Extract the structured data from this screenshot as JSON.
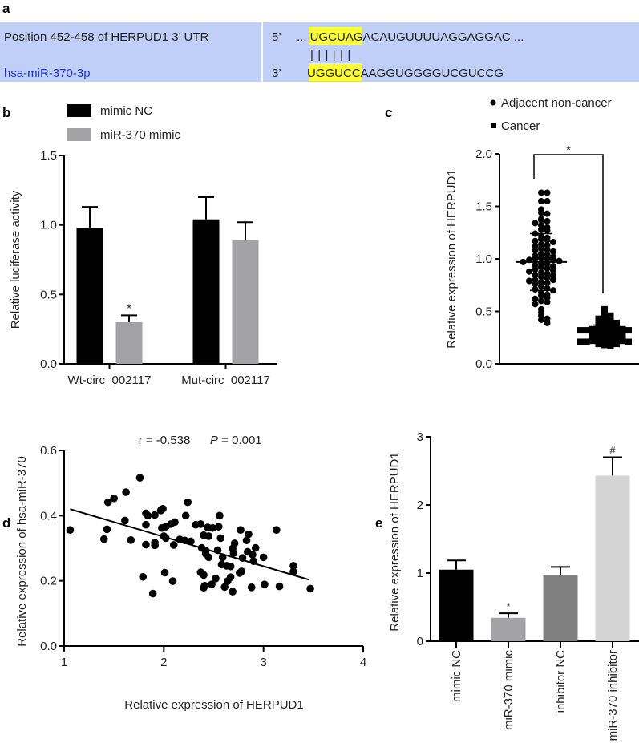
{
  "panel_labels": {
    "a": "a",
    "b": "b",
    "c": "c",
    "d": "d",
    "e": "e"
  },
  "panel_a": {
    "row1_label": "Position 452-458 of HERPUD1 3’ UTR",
    "row2_label": "hsa-miR-370-3p",
    "row1_end": "5’",
    "row2_end": "3’",
    "row1_seq_pre": "... UGCUAGACAUGUUUU",
    "row1_seq_match": "AGGAGG",
    "row1_seq_post": "AC ...",
    "row2_seq_pre": "UGGUCCAAGGUGGGG",
    "row2_seq_match": "UCGUCC",
    "row2_seq_post": "G",
    "pairing": "| | | | | |",
    "colors": {
      "band": "#c0cff7",
      "highlight": "#ffff33",
      "mirna_text": "#2233cc"
    }
  },
  "chart_data": [
    {
      "id": "b",
      "type": "bar",
      "ylabel": "Relative luciferase activity",
      "xlabel": "",
      "ylim": [
        0,
        1.5
      ],
      "yticks": [
        "0.0",
        "0.5",
        "1.0",
        "1.5"
      ],
      "categories": [
        "Wt-circ_002117",
        "Mut-circ_002117"
      ],
      "legend": "top-left",
      "series": [
        {
          "name": "mimic NC",
          "color": "#000000",
          "values": [
            0.98,
            1.04
          ],
          "errors": [
            0.15,
            0.16
          ],
          "annotations": [
            "",
            ""
          ]
        },
        {
          "name": "miR-370 mimic",
          "color": "#a3a3a6",
          "values": [
            0.3,
            0.89
          ],
          "errors": [
            0.05,
            0.13
          ],
          "annotations": [
            "*",
            ""
          ]
        }
      ]
    },
    {
      "id": "c",
      "type": "scatter",
      "subtype": "dot-plot",
      "ylabel": "Relative expression of HERPUD1",
      "ylim": [
        0,
        2.0
      ],
      "yticks": [
        "0.0",
        "0.5",
        "1.0",
        "1.5",
        "2.0"
      ],
      "legend": "top-right",
      "significance": "*",
      "groups": [
        {
          "name": "Adjacent non-cancer",
          "marker": "circle",
          "mean": 0.97,
          "sd": 0.27,
          "values": [
            1.63,
            1.63,
            1.55,
            1.55,
            1.47,
            1.44,
            1.43,
            1.38,
            1.37,
            1.36,
            1.34,
            1.32,
            1.3,
            1.28,
            1.27,
            1.24,
            1.22,
            1.2,
            1.19,
            1.18,
            1.17,
            1.16,
            1.14,
            1.13,
            1.12,
            1.1,
            1.09,
            1.08,
            1.07,
            1.05,
            1.04,
            1.03,
            1.02,
            1.01,
            1.0,
            1.0,
            0.99,
            0.99,
            0.98,
            0.97,
            0.96,
            0.95,
            0.94,
            0.93,
            0.92,
            0.91,
            0.9,
            0.89,
            0.88,
            0.87,
            0.86,
            0.85,
            0.84,
            0.83,
            0.82,
            0.8,
            0.8,
            0.79,
            0.78,
            0.77,
            0.76,
            0.74,
            0.72,
            0.71,
            0.7,
            0.68,
            0.66,
            0.65,
            0.63,
            0.62,
            0.6,
            0.59,
            0.57,
            0.52,
            0.49,
            0.46,
            0.43,
            0.42,
            0.39
          ]
        },
        {
          "name": "Cancer",
          "marker": "square",
          "mean": 0.3,
          "sd": 0.07,
          "values": [
            0.52,
            0.47,
            0.46,
            0.45,
            0.44,
            0.43,
            0.42,
            0.41,
            0.4,
            0.4,
            0.39,
            0.39,
            0.38,
            0.38,
            0.37,
            0.37,
            0.36,
            0.36,
            0.35,
            0.35,
            0.34,
            0.34,
            0.34,
            0.33,
            0.33,
            0.33,
            0.32,
            0.32,
            0.32,
            0.31,
            0.31,
            0.31,
            0.3,
            0.3,
            0.3,
            0.29,
            0.29,
            0.29,
            0.28,
            0.28,
            0.28,
            0.27,
            0.27,
            0.27,
            0.26,
            0.26,
            0.26,
            0.25,
            0.25,
            0.25,
            0.24,
            0.24,
            0.24,
            0.23,
            0.23,
            0.23,
            0.22,
            0.22,
            0.22,
            0.21,
            0.21,
            0.21,
            0.2,
            0.2,
            0.19,
            0.19,
            0.18,
            0.17
          ]
        }
      ]
    },
    {
      "id": "d",
      "type": "scatter",
      "xlabel": "Relative expression of HERPUD1",
      "ylabel": "Relative expression of hsa-miR-370",
      "xlim": [
        1,
        4
      ],
      "ylim": [
        0,
        0.6
      ],
      "xticks": [
        "1",
        "2",
        "3",
        "4"
      ],
      "yticks": [
        "0.0",
        "0.2",
        "0.4",
        "0.6"
      ],
      "stat_r": "r = -0.538",
      "stat_p_label": "P",
      "stat_p_value": " = 0.001",
      "fit_line": {
        "x": [
          1.06,
          3.46
        ],
        "y": [
          0.42,
          0.203
        ]
      },
      "points": [
        [
          1.06,
          0.356
        ],
        [
          1.76,
          0.516
        ],
        [
          1.62,
          0.472
        ],
        [
          1.44,
          0.441
        ],
        [
          1.5,
          0.453
        ],
        [
          1.61,
          0.385
        ],
        [
          1.43,
          0.358
        ],
        [
          1.4,
          0.328
        ],
        [
          1.67,
          0.325
        ],
        [
          1.82,
          0.372
        ],
        [
          1.82,
          0.407
        ],
        [
          1.84,
          0.4
        ],
        [
          1.91,
          0.402
        ],
        [
          1.82,
          0.311
        ],
        [
          1.91,
          0.317
        ],
        [
          1.91,
          0.309
        ],
        [
          1.79,
          0.212
        ],
        [
          1.89,
          0.161
        ],
        [
          1.97,
          0.416
        ],
        [
          1.99,
          0.421
        ],
        [
          1.98,
          0.362
        ],
        [
          2.02,
          0.366
        ],
        [
          2.0,
          0.337
        ],
        [
          2.02,
          0.331
        ],
        [
          2.07,
          0.374
        ],
        [
          2.11,
          0.38
        ],
        [
          2.1,
          0.31
        ],
        [
          2.01,
          0.225
        ],
        [
          2.09,
          0.199
        ],
        [
          2.22,
          0.4
        ],
        [
          2.24,
          0.441
        ],
        [
          2.16,
          0.327
        ],
        [
          2.21,
          0.324
        ],
        [
          2.27,
          0.321
        ],
        [
          2.32,
          0.372
        ],
        [
          2.37,
          0.374
        ],
        [
          2.44,
          0.364
        ],
        [
          2.49,
          0.362
        ],
        [
          2.55,
          0.366
        ],
        [
          2.56,
          0.4
        ],
        [
          2.57,
          0.331
        ],
        [
          2.4,
          0.34
        ],
        [
          2.45,
          0.337
        ],
        [
          2.38,
          0.301
        ],
        [
          2.42,
          0.293
        ],
        [
          2.42,
          0.283
        ],
        [
          2.45,
          0.272
        ],
        [
          2.54,
          0.294
        ],
        [
          2.59,
          0.272
        ],
        [
          2.58,
          0.25
        ],
        [
          2.63,
          0.246
        ],
        [
          2.67,
          0.244
        ],
        [
          2.37,
          0.226
        ],
        [
          2.4,
          0.218
        ],
        [
          2.52,
          0.207
        ],
        [
          2.48,
          0.189
        ],
        [
          2.4,
          0.179
        ],
        [
          2.41,
          0.185
        ],
        [
          2.61,
          0.181
        ],
        [
          2.64,
          0.199
        ],
        [
          2.67,
          0.211
        ],
        [
          2.69,
          0.167
        ],
        [
          2.69,
          0.299
        ],
        [
          2.71,
          0.315
        ],
        [
          2.7,
          0.285
        ],
        [
          2.77,
          0.356
        ],
        [
          2.79,
          0.27
        ],
        [
          2.76,
          0.224
        ],
        [
          2.78,
          0.229
        ],
        [
          2.85,
          0.343
        ],
        [
          2.83,
          0.324
        ],
        [
          2.84,
          0.289
        ],
        [
          2.92,
          0.301
        ],
        [
          2.89,
          0.28
        ],
        [
          2.9,
          0.26
        ],
        [
          3.0,
          0.272
        ],
        [
          2.88,
          0.18
        ],
        [
          3.01,
          0.189
        ],
        [
          3.13,
          0.356
        ],
        [
          3.16,
          0.183
        ],
        [
          3.3,
          0.246
        ],
        [
          3.3,
          0.228
        ],
        [
          3.47,
          0.176
        ]
      ]
    },
    {
      "id": "e",
      "type": "bar",
      "ylabel": "Relative expression of HERPUD1",
      "ylim": [
        0,
        3
      ],
      "yticks": [
        "0",
        "1",
        "2",
        "3"
      ],
      "categories": [
        "mimic NC",
        "miR-370 mimic",
        "inhibitor NC",
        "miR-370 inhibitor"
      ],
      "values": [
        1.05,
        0.344,
        0.965,
        2.43
      ],
      "errors": [
        0.135,
        0.066,
        0.125,
        0.27
      ],
      "colors": [
        "#000000",
        "#a3a3a6",
        "#808080",
        "#d4d4d4"
      ],
      "annotations": [
        "",
        "*",
        "",
        "#"
      ]
    }
  ]
}
